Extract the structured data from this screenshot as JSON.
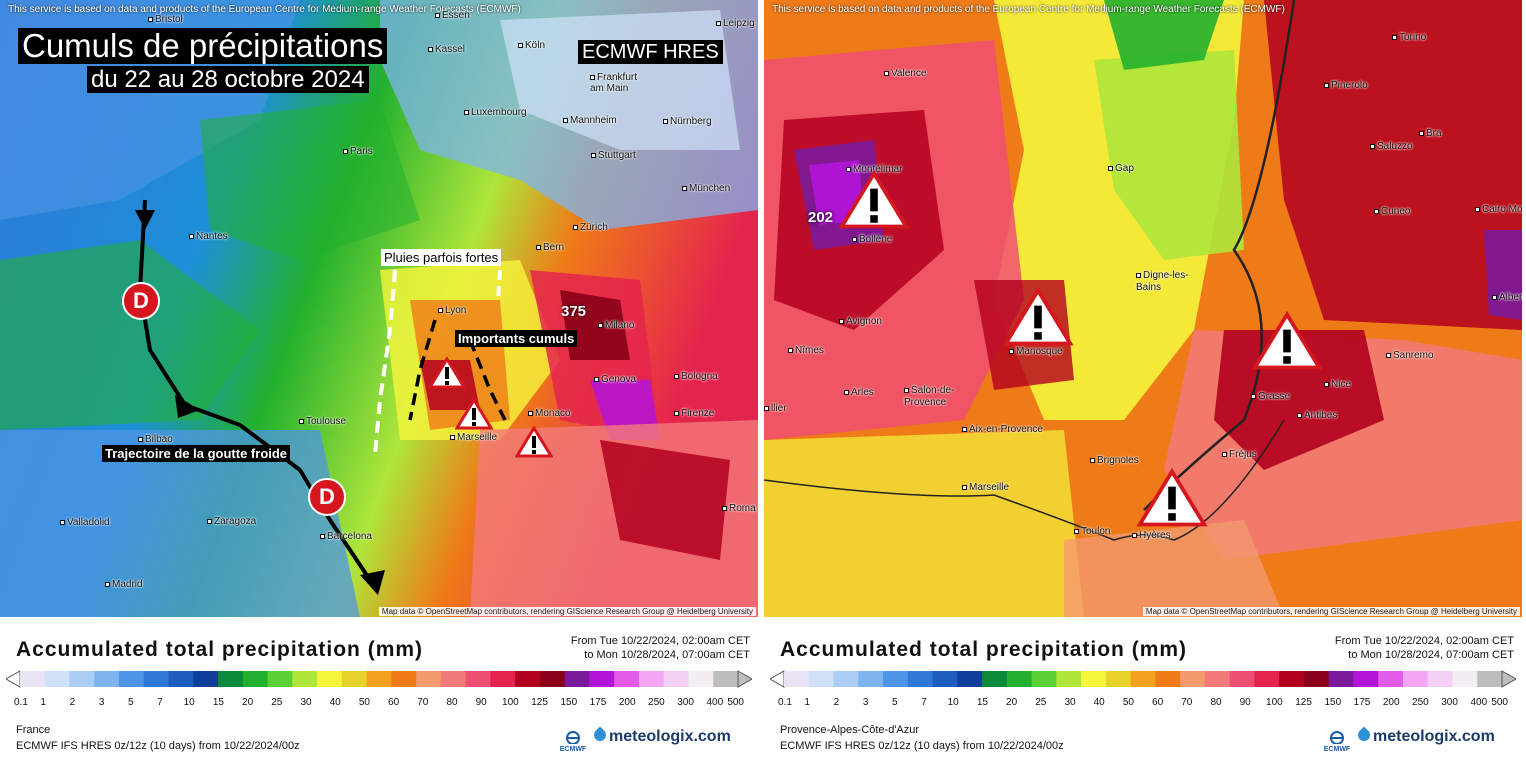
{
  "credit_top": "This service is based on data and products of the European Centre for Medium-range Weather Forecasts (ECMWF)",
  "credit_bottom": "Map data © OpenStreetMap contributors, rendering GIScience Research Group @ Heidelberg University",
  "legend": {
    "title": "Accumulated total precipitation (mm)",
    "period_from": "From Tue 10/22/2024, 02:00am CET",
    "period_to": "to Mon 10/28/2024, 07:00am CET",
    "ticks": [
      "0.1",
      "1",
      "2",
      "3",
      "5",
      "7",
      "10",
      "15",
      "20",
      "25",
      "30",
      "40",
      "50",
      "60",
      "70",
      "80",
      "90",
      "100",
      "125",
      "150",
      "175",
      "200",
      "250",
      "300",
      "400",
      "500"
    ],
    "colors": [
      "#e8e4f4",
      "#cfe1f8",
      "#a9cdf5",
      "#7db4ef",
      "#4f95e6",
      "#2f78d8",
      "#1e5cc0",
      "#0f3f9a",
      "#0a8a3a",
      "#22b02e",
      "#5cd133",
      "#aee63b",
      "#f5f53c",
      "#e6d22a",
      "#f2a21e",
      "#ef7a18",
      "#f39a6e",
      "#f27a7a",
      "#ee4f72",
      "#e5244e",
      "#b3001e",
      "#8a0018",
      "#7a1a9a",
      "#b314d8",
      "#e25ce8",
      "#f2a6f4",
      "#f4d0f4",
      "#f4eef4",
      "#bdbdbd"
    ],
    "model": "ECMWF IFS HRES 0z/12z (10 days) from 10/22/2024/00z",
    "ecmwf_logo": "ECMWF",
    "brand": "meteologix.com"
  },
  "left": {
    "title": "Cumuls de précipitations",
    "subtitle": "du 22 au 28 octobre 2024",
    "model_badge": "ECMWF HRES",
    "region": "France",
    "annotations": {
      "pluies": "Pluies parfois fortes",
      "cumuls": "Importants cumuls",
      "trajectoire": "Trajectoire de la goutte froide",
      "d1": "D",
      "d2": "D",
      "max_value": "375"
    },
    "cities": [
      "Bristol",
      "Essen",
      "Kassel",
      "Leipzig",
      "Köln",
      "Frankfurt am Main",
      "Luxembourg",
      "Mannheim",
      "Nürnberg",
      "Paris",
      "Stuttgart",
      "München",
      "Nantes",
      "Bern",
      "Zürich",
      "Lyon",
      "Milano",
      "Genova",
      "Bologna",
      "Toulouse",
      "Monaco",
      "Marseille",
      "Firenze",
      "Bilbao",
      "Valladolid",
      "Zaragoza",
      "Barcelona",
      "Madrid",
      "Roma"
    ]
  },
  "right": {
    "region": "Provence-Alpes-Côte-d'Azur",
    "max_value": "202",
    "cities": [
      "Valence",
      "Torino",
      "Pinerolo",
      "Montélimar",
      "Saluzzo",
      "Bra",
      "Gap",
      "Cuneo",
      "Cairo Mo",
      "Bollène",
      "Digne-les-Bains",
      "Albeng",
      "Avignon",
      "Manosque",
      "Sanremo",
      "Nîmes",
      "Arles",
      "Nice",
      "Salon-de-Provence",
      "Grasse",
      "Antibes",
      "Aix-en-Provence",
      "Fréjus",
      "Brignoles",
      "Marseille",
      "Toulon",
      "Hyères",
      "llier"
    ]
  }
}
